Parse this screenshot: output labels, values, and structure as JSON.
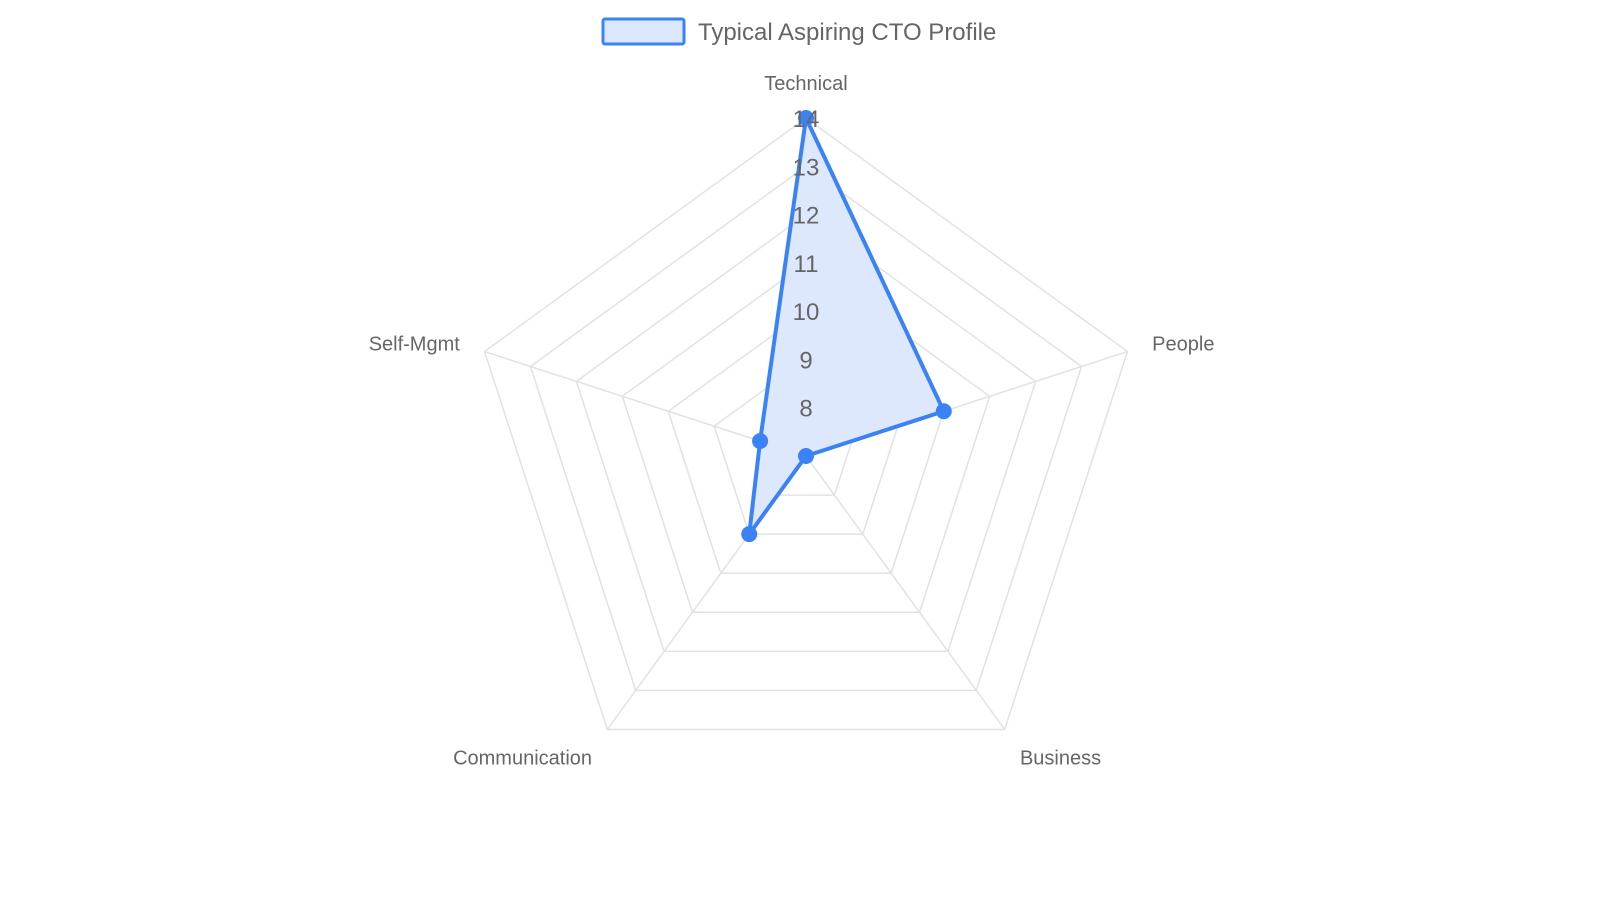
{
  "chart_data": {
    "type": "radar",
    "title": "",
    "axes": [
      "Technical",
      "People",
      "Business",
      "Communication",
      "Self-Mgmt"
    ],
    "series": [
      {
        "name": "Typical Aspiring CTO Profile",
        "values": [
          14,
          10,
          7,
          9,
          8
        ],
        "color": "#3b82f6",
        "fill": "#dbe7fd"
      }
    ],
    "rlim": [
      7,
      14
    ],
    "ticks": [
      8,
      9,
      10,
      11,
      12,
      13,
      14
    ],
    "grid": true,
    "legend": "top-center"
  },
  "colors": {
    "grid": "#e2e2e2",
    "text": "#666666"
  }
}
